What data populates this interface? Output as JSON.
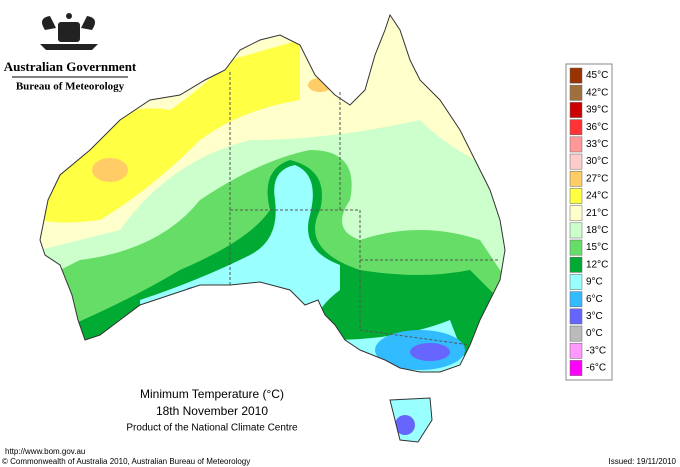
{
  "header": {
    "agency": "Australian Government",
    "bureau": "Bureau of Meteorology"
  },
  "map": {
    "title": "Minimum Temperature (°C)",
    "date": "18th November 2010",
    "product": "Product of the National Climate Centre"
  },
  "legend": {
    "items": [
      {
        "label": "45°C",
        "color": "#993300"
      },
      {
        "label": "42°C",
        "color": "#a0703c"
      },
      {
        "label": "39°C",
        "color": "#cc0000"
      },
      {
        "label": "36°C",
        "color": "#ff3333"
      },
      {
        "label": "33°C",
        "color": "#ff9999"
      },
      {
        "label": "30°C",
        "color": "#ffcccc"
      },
      {
        "label": "27°C",
        "color": "#ffcc66"
      },
      {
        "label": "24°C",
        "color": "#ffff44"
      },
      {
        "label": "21°C",
        "color": "#ffffcc"
      },
      {
        "label": "18°C",
        "color": "#ccffcc"
      },
      {
        "label": "15°C",
        "color": "#66dd66"
      },
      {
        "label": "12°C",
        "color": "#00aa33"
      },
      {
        "label": "9°C",
        "color": "#99ffff"
      },
      {
        "label": "6°C",
        "color": "#33bbff"
      },
      {
        "label": "3°C",
        "color": "#6666ff"
      },
      {
        "label": "0°C",
        "color": "#bbbbbb"
      },
      {
        "label": "-3°C",
        "color": "#ff99ff"
      },
      {
        "label": "-6°C",
        "color": "#ff00ff"
      }
    ]
  },
  "footer": {
    "url": "http://www.bom.gov.au",
    "copyright": "© Commonwealth of Australia 2010, Australian Bureau of Meteorology",
    "issued": "Issued: 19/11/2010"
  }
}
